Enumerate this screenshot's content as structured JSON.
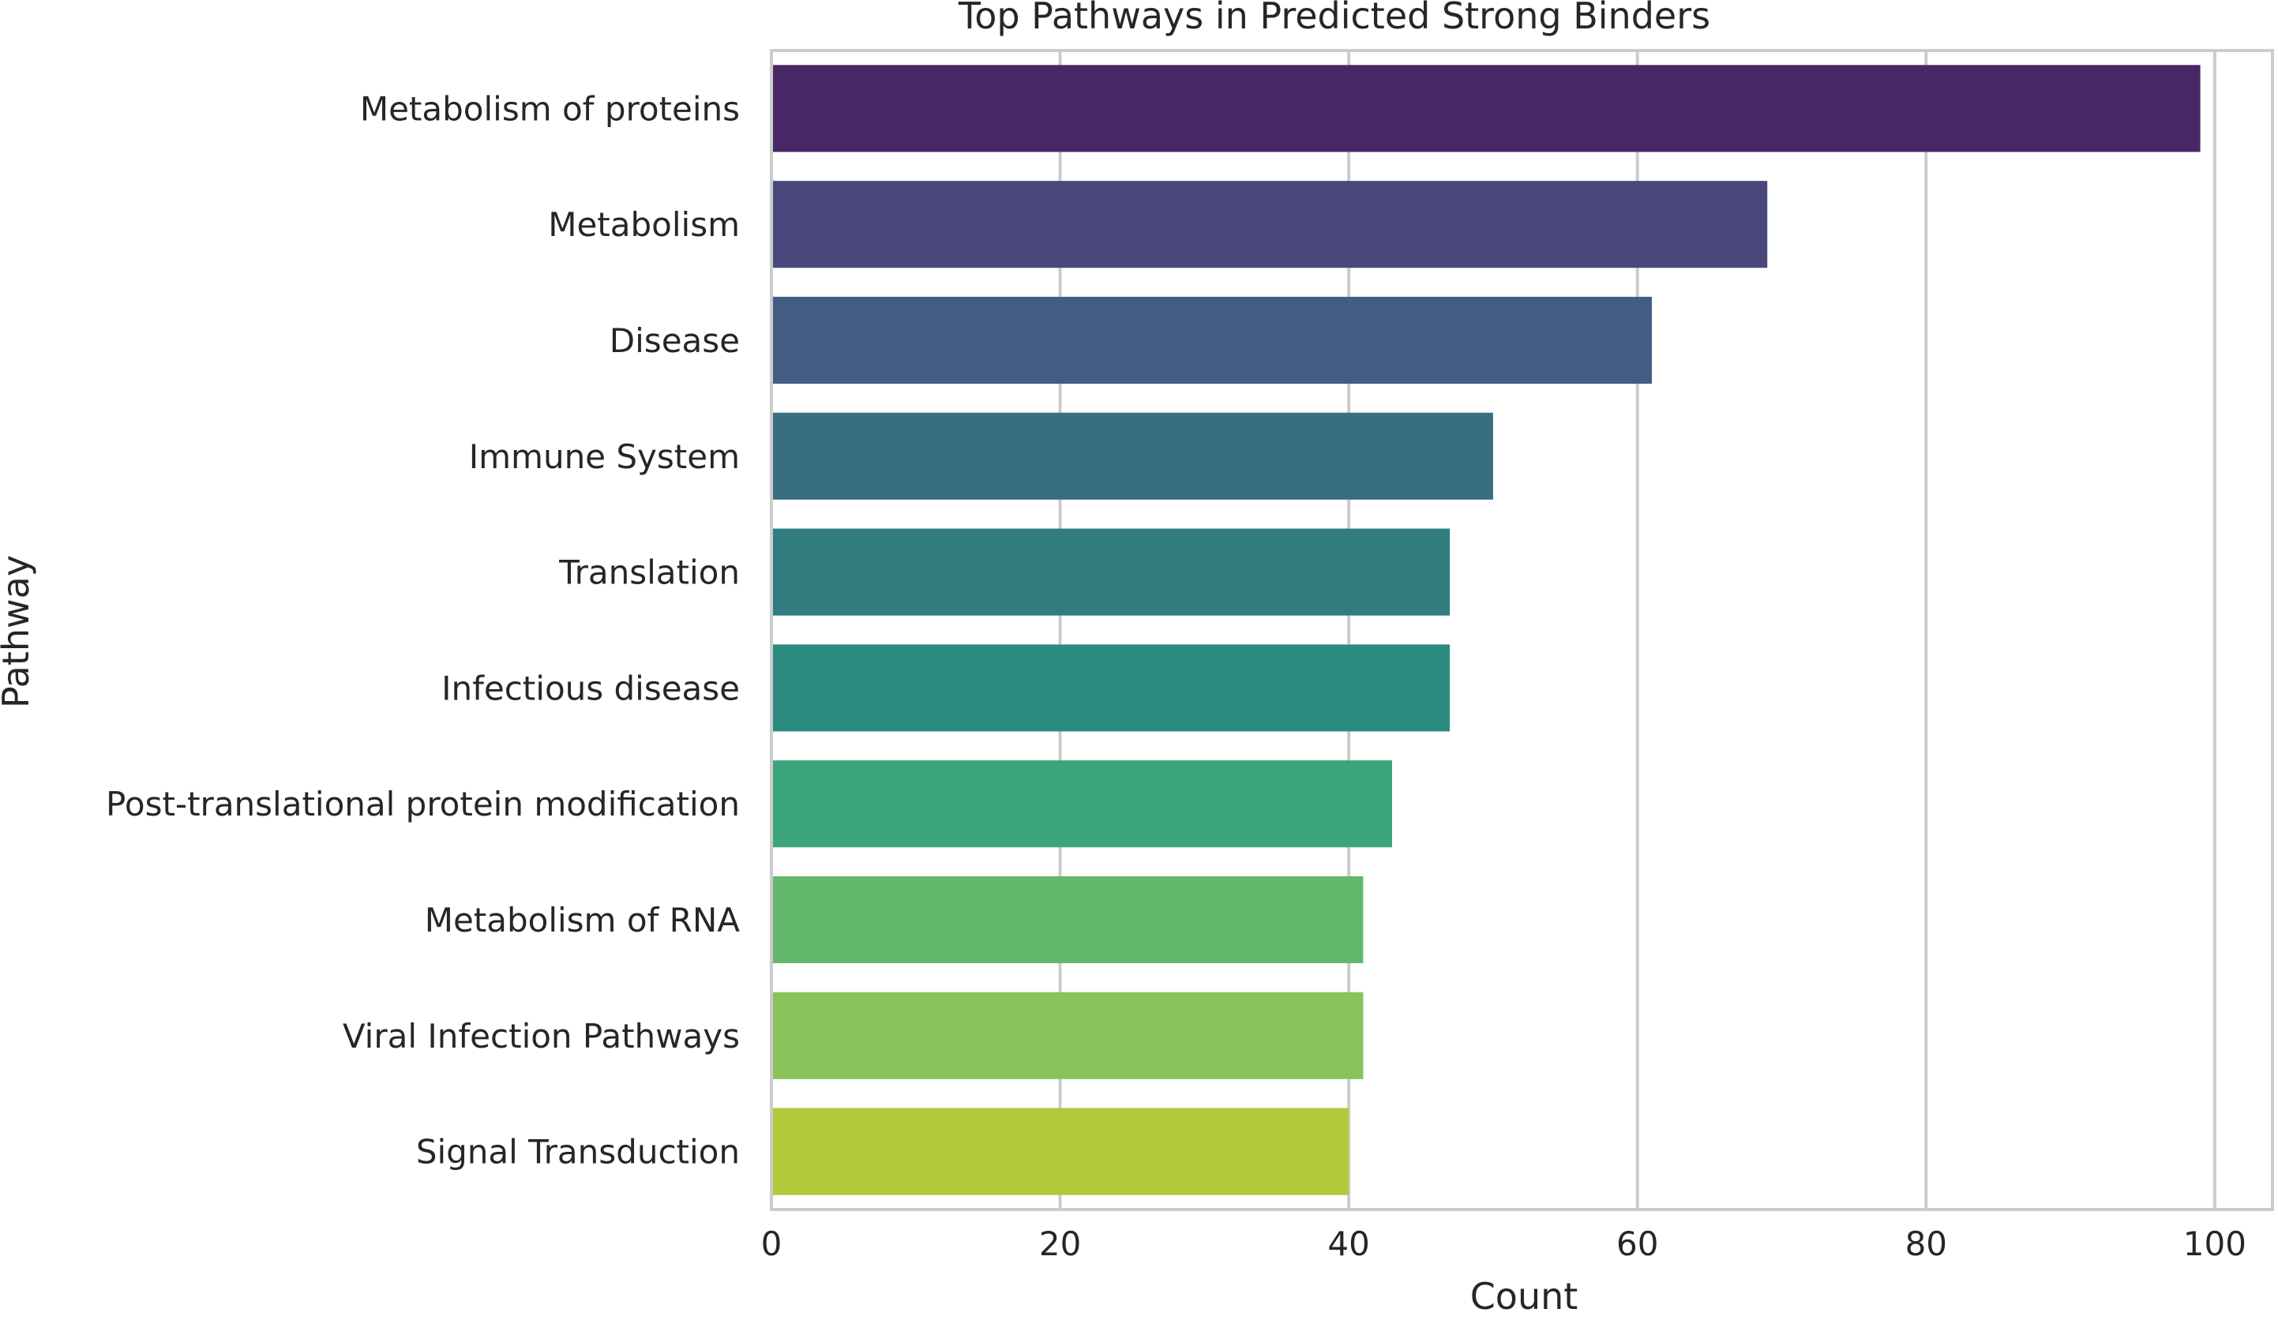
{
  "chart_data": {
    "type": "bar",
    "orientation": "horizontal",
    "title": "Top Pathways in Predicted Strong Binders",
    "xlabel": "Count",
    "ylabel": "Pathway",
    "xlim": [
      0,
      104
    ],
    "xticks": [
      0,
      20,
      40,
      60,
      80,
      100
    ],
    "grid": true,
    "categories": [
      "Metabolism of proteins",
      "Metabolism",
      "Disease",
      "Immune System",
      "Translation",
      "Infectious disease",
      "Post-translational protein modification",
      "Metabolism of RNA",
      "Viral Infection Pathways",
      "Signal Transduction"
    ],
    "values": [
      99,
      69,
      61,
      50,
      47,
      47,
      43,
      41,
      41,
      40
    ],
    "colors": [
      "#482767",
      "#4a477c",
      "#425c83",
      "#386e80",
      "#307c7f",
      "#2c8a7e",
      "#3ca47a",
      "#62b76d",
      "#89c35c",
      "#b1c93a"
    ]
  }
}
